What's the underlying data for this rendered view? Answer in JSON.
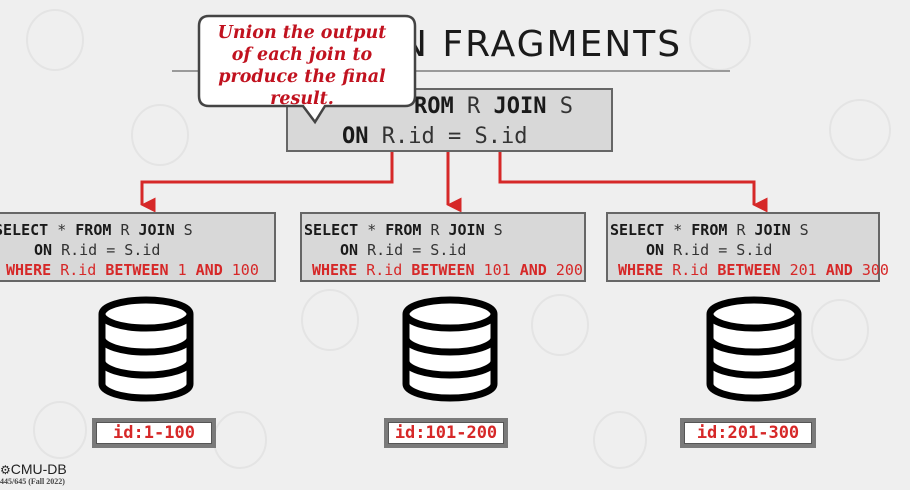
{
  "slide": {
    "title": "N FRAGMENTS",
    "callout": "Union the output of each join to produce the final result.",
    "footer_logo": "CMU-DB",
    "footer_course": "445/645 (Fall 2022)"
  },
  "main_query": {
    "line1_kw1": "ROM",
    "line1_rel1": "R",
    "line1_kw2": "JOIN",
    "line1_rel2": "S",
    "line2_kw": "ON",
    "line2_expr": "R.id = S.id"
  },
  "fragments": [
    {
      "select": "SELECT",
      "star": "*",
      "from": "FROM",
      "r": "R",
      "join": "JOIN",
      "s": "S",
      "on": "ON",
      "cond": "R.id = S.id",
      "where": "WHERE",
      "col": "R.id",
      "between": "BETWEEN",
      "lo": "1",
      "and": "AND",
      "hi": "100",
      "id_label": "id:1-100"
    },
    {
      "select": "SELECT",
      "star": "*",
      "from": "FROM",
      "r": "R",
      "join": "JOIN",
      "s": "S",
      "on": "ON",
      "cond": "R.id = S.id",
      "where": "WHERE",
      "col": "R.id",
      "between": "BETWEEN",
      "lo": "101",
      "and": "AND",
      "hi": "200",
      "id_label": "id:101-200"
    },
    {
      "select": "SELECT",
      "star": "*",
      "from": "FROM",
      "r": "R",
      "join": "JOIN",
      "s": "S",
      "on": "ON",
      "cond": "R.id = S.id",
      "where": "WHERE",
      "col": "R.id",
      "between": "BETWEEN",
      "lo": "201",
      "and": "AND",
      "hi": "300",
      "id_label": "id:201-300"
    }
  ],
  "colors": {
    "arrow": "#d62828",
    "box_fill": "#d8d8d8",
    "accent_text": "#c1121f"
  }
}
